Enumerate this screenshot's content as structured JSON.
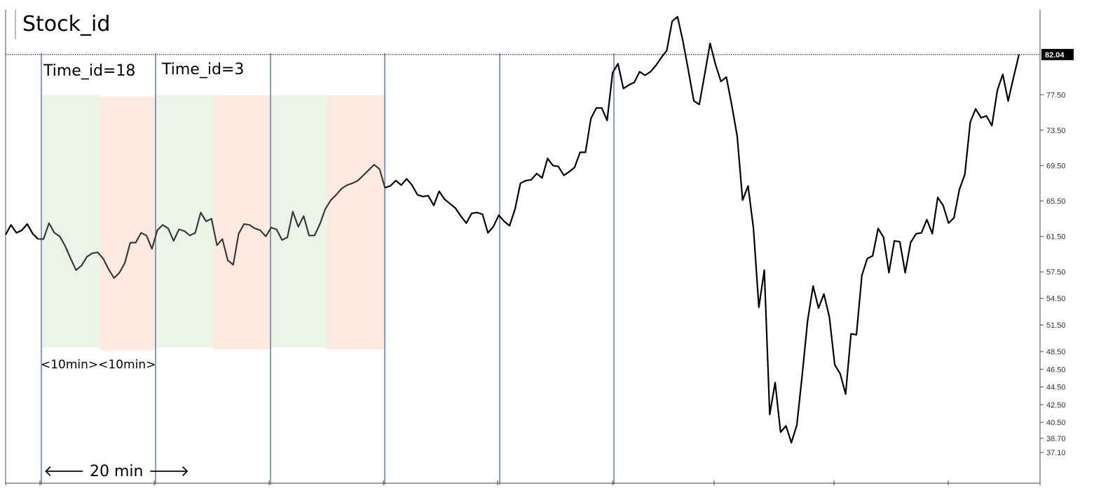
{
  "chart_data": {
    "type": "line",
    "title": "Stock_id",
    "xlabel": "",
    "ylabel": "",
    "ylim": [
      36.4,
      86.3
    ],
    "y_ticks": [
      "82.04",
      "77.50",
      "73.50",
      "69.50",
      "65.50",
      "61.50",
      "57.50",
      "54.50",
      "51.50",
      "48.50",
      "46.50",
      "44.50",
      "42.50",
      "40.50",
      "38.70",
      "37.10"
    ],
    "last_value": "82.04",
    "grid": false,
    "series": [
      {
        "values": [
          61.7,
          62.8,
          61.9,
          62.2,
          62.9,
          61.8,
          61.2,
          61.2,
          63.0,
          61.9,
          61.5,
          60.4,
          59.0,
          57.7,
          58.2,
          59.2,
          59.6,
          59.7,
          59.0,
          57.8,
          56.8,
          57.4,
          58.5,
          60.8,
          60.8,
          61.9,
          61.6,
          60.1,
          62.2,
          62.8,
          62.4,
          61.0,
          62.3,
          62.1,
          61.6,
          61.9,
          64.2,
          63.2,
          63.5,
          60.5,
          61.2,
          58.8,
          58.3,
          61.8,
          62.9,
          62.8,
          62.4,
          62.2,
          61.5,
          62.5,
          62.3,
          61.1,
          61.4,
          64.3,
          62.6,
          63.8,
          61.6,
          61.6,
          62.9,
          64.6,
          65.6,
          66.2,
          66.9,
          67.3,
          67.5,
          67.8,
          68.4,
          69.0,
          69.6,
          69.1,
          67.0,
          67.2,
          67.8,
          67.3,
          68.0,
          67.3,
          66.2,
          66.0,
          66.1,
          65.0,
          66.6,
          65.7,
          65.2,
          64.7,
          63.8,
          63.0,
          64.1,
          64.2,
          64.0,
          61.9,
          62.6,
          63.9,
          63.2,
          62.7,
          64.6,
          67.5,
          67.8,
          67.9,
          68.6,
          68.1,
          70.3,
          69.5,
          69.4,
          68.4,
          68.8,
          69.3,
          71.0,
          71.0,
          74.8,
          76.0,
          76.0,
          74.6,
          80.0,
          81.0,
          78.2,
          78.6,
          78.9,
          80.1,
          79.7,
          80.1,
          80.8,
          81.7,
          82.5,
          85.8,
          86.3,
          83.5,
          80.2,
          76.8,
          76.4,
          79.8,
          83.3,
          80.9,
          79.0,
          79.5,
          76.3,
          72.8,
          65.6,
          67.2,
          62.4,
          53.5,
          57.7,
          41.4,
          45.0,
          39.4,
          40.1,
          38.2,
          40.2,
          45.9,
          52.0,
          55.9,
          53.4,
          55.0,
          52.4,
          47.0,
          46.0,
          43.7,
          50.5,
          50.4,
          57.1,
          59.0,
          59.3,
          62.4,
          61.4,
          57.4,
          61.0,
          60.9,
          57.4,
          60.8,
          61.8,
          61.9,
          63.4,
          61.8,
          65.9,
          65.0,
          63.0,
          63.6,
          66.8,
          68.5,
          74.4,
          75.9,
          74.9,
          75.1,
          74.0,
          78.0,
          79.8,
          76.8,
          79.5,
          82.04
        ]
      }
    ],
    "annotations": {
      "time_id_a": "Time_id=18",
      "time_id_b": "Time_id=3",
      "interval_label": "<10min><10min>",
      "duration_label": "🡐 20 min 🡒"
    },
    "colors": {
      "line": "#000000",
      "line_highlight": "#3a3a3a",
      "divider": "#3c6bb0",
      "band_green": "#ebf4e6",
      "band_salmon": "#fde9df",
      "last_value_bg": "#000000"
    }
  }
}
